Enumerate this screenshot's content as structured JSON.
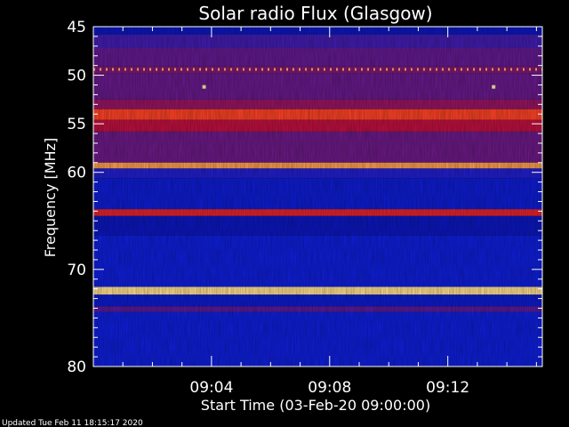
{
  "chart_data": {
    "type": "heatmap",
    "title": "Solar radio Flux (Glasgow)",
    "xlabel": "Start Time (03-Feb-20 09:00:00)",
    "ylabel": "Frequency [MHz]",
    "x_unit": "minutes after 09:00",
    "xlim": [
      0,
      15.2
    ],
    "ylim": [
      45,
      80
    ],
    "y_inverted": true,
    "x_ticks": [
      {
        "value": 4,
        "label": "09:04"
      },
      {
        "value": 8,
        "label": "09:08"
      },
      {
        "value": 12,
        "label": "09:12"
      }
    ],
    "y_ticks": [
      {
        "value": 45,
        "label": "45"
      },
      {
        "value": 50,
        "label": "50"
      },
      {
        "value": 55,
        "label": "55"
      },
      {
        "value": 60,
        "label": "60"
      },
      {
        "value": 70,
        "label": "70"
      },
      {
        "value": 80,
        "label": "80"
      }
    ],
    "y_minor_ticks": [
      46,
      47,
      48,
      49,
      51,
      52,
      53,
      54,
      56,
      57,
      58,
      59,
      61,
      62,
      63,
      64,
      65,
      66,
      67,
      68,
      69,
      71,
      72,
      73,
      74,
      75,
      76,
      77,
      78,
      79
    ],
    "colormap": [
      "#00006a",
      "#1020e0",
      "#6a1a8a",
      "#c01040",
      "#ff3020",
      "#ff9040",
      "#fff0a0"
    ],
    "bands": [
      {
        "f0": 45.0,
        "f1": 45.8,
        "level": 0.12
      },
      {
        "f0": 45.8,
        "f1": 47.2,
        "level": 0.26
      },
      {
        "f0": 47.2,
        "f1": 49.1,
        "level": 0.32
      },
      {
        "f0": 49.1,
        "f1": 49.8,
        "level": 0.38
      },
      {
        "f0": 49.8,
        "f1": 52.5,
        "level": 0.33
      },
      {
        "f0": 52.5,
        "f1": 53.5,
        "level": 0.42
      },
      {
        "f0": 53.5,
        "f1": 54.6,
        "level": 0.7
      },
      {
        "f0": 54.6,
        "f1": 55.8,
        "level": 0.5
      },
      {
        "f0": 55.8,
        "f1": 59.0,
        "level": 0.34
      },
      {
        "f0": 59.0,
        "f1": 59.6,
        "level": 0.86
      },
      {
        "f0": 59.6,
        "f1": 60.6,
        "level": 0.2
      },
      {
        "f0": 60.6,
        "f1": 63.8,
        "level": 0.15
      },
      {
        "f0": 63.8,
        "f1": 64.5,
        "level": 0.6
      },
      {
        "f0": 64.5,
        "f1": 66.5,
        "level": 0.12
      },
      {
        "f0": 66.5,
        "f1": 71.8,
        "level": 0.16
      },
      {
        "f0": 71.8,
        "f1": 72.6,
        "level": 0.97
      },
      {
        "f0": 72.6,
        "f1": 73.8,
        "level": 0.14
      },
      {
        "f0": 73.8,
        "f1": 74.4,
        "level": 0.3
      },
      {
        "f0": 74.4,
        "f1": 80.0,
        "level": 0.16
      }
    ],
    "dashed_line": {
      "frequency": 49.4,
      "level": 0.9
    },
    "bright_spots": [
      {
        "t": 3.75,
        "f": 51.2,
        "level": 1.0
      },
      {
        "t": 13.55,
        "f": 51.2,
        "level": 1.0
      }
    ]
  },
  "footer": {
    "updated": "Updated Tue Feb 11 18:15:17 2020"
  }
}
